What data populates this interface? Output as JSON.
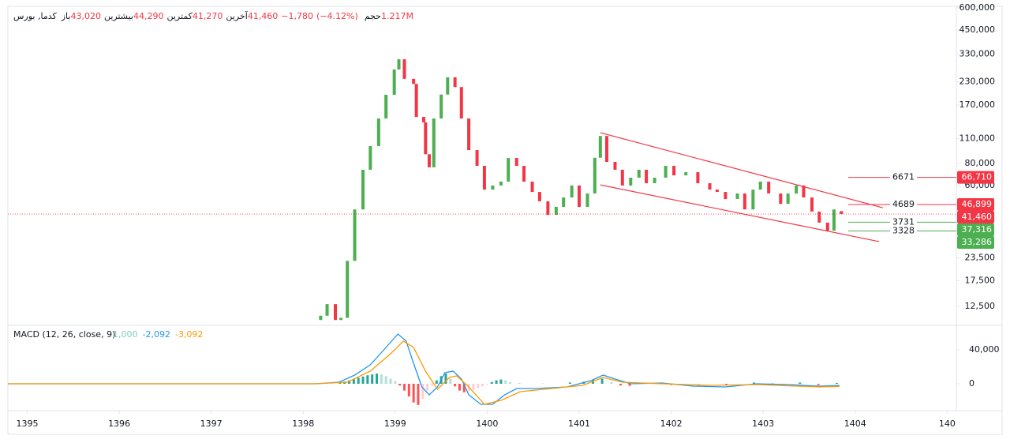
{
  "chart_data": [
    {
      "type": "candlestick",
      "header": {
        "symbol": "کدما, بورس",
        "items": [
          {
            "label": "باز",
            "value": "43,020"
          },
          {
            "label": "بیشترین",
            "value": "44,290"
          },
          {
            "label": "کمترین",
            "value": "41,270"
          },
          {
            "label": "آخرین",
            "value": "41,460"
          }
        ],
        "change": "−1,780",
        "change_pct": "(−4.12%)",
        "volume_label": "حجم",
        "volume": "1.217M"
      },
      "log_scale": true,
      "xlim": [
        1394.79,
        1405.1
      ],
      "ylim": [
        10000,
        612000
      ],
      "yticks": [
        {
          "value": 600000,
          "label": "600,000"
        },
        {
          "value": 450000,
          "label": "450,000"
        },
        {
          "value": 330000,
          "label": "330,000"
        },
        {
          "value": 230000,
          "label": "230,000"
        },
        {
          "value": 170000,
          "label": "170,000"
        },
        {
          "value": 110000,
          "label": "110,000"
        },
        {
          "value": 80000,
          "label": "80,000"
        },
        {
          "value": 60000,
          "label": "60,000"
        },
        {
          "value": 23500,
          "label": "23,500"
        },
        {
          "value": 17500,
          "label": "17,500"
        },
        {
          "value": 12500,
          "label": "12,500"
        }
      ],
      "up_color": "#4caf50",
      "down_color": "#f23645",
      "x": [
        1398.19,
        1398.26,
        1398.35,
        1398.41,
        1398.48,
        1398.56,
        1398.65,
        1398.73,
        1398.82,
        1398.9,
        1398.99,
        1399.04,
        1399.1,
        1399.2,
        1399.23,
        1399.31,
        1399.33,
        1399.37,
        1399.42,
        1399.5,
        1399.57,
        1399.65,
        1399.72,
        1399.8,
        1399.89,
        1399.97,
        1400.06,
        1400.15,
        1400.23,
        1400.32,
        1400.4,
        1400.49,
        1400.57,
        1400.66,
        1400.75,
        1400.83,
        1400.92,
        1401.0,
        1401.09,
        1401.17,
        1401.23,
        1401.3,
        1401.39,
        1401.47,
        1401.56,
        1401.65,
        1401.73,
        1401.82,
        1401.94,
        1402.03,
        1402.16,
        1402.29,
        1402.42,
        1402.5,
        1402.59,
        1402.72,
        1402.8,
        1402.89,
        1402.97,
        1403.06,
        1403.19,
        1403.27,
        1403.36,
        1403.44,
        1403.53,
        1403.61,
        1403.7,
        1403.77,
        1403.85
      ],
      "open": [
        10500,
        11100,
        12900,
        10500,
        10800,
        22600,
        44000,
        73600,
        100000,
        143000,
        194500,
        270000,
        308000,
        239000,
        224000,
        146000,
        136000,
        90000,
        76000,
        143000,
        195000,
        244000,
        215000,
        143000,
        95000,
        77400,
        56900,
        60000,
        63100,
        85700,
        77400,
        63100,
        55200,
        48900,
        41000,
        45500,
        51400,
        60000,
        45500,
        54100,
        86000,
        114000,
        81500,
        73600,
        60000,
        66400,
        73600,
        61800,
        66400,
        77400,
        68400,
        71300,
        61800,
        56900,
        55200,
        50400,
        54100,
        44000,
        56900,
        63100,
        54100,
        47300,
        54100,
        60000,
        51400,
        42800,
        37100,
        33400,
        43020
      ],
      "close": [
        11100,
        12900,
        10500,
        10800,
        22600,
        44000,
        73600,
        100000,
        143000,
        194500,
        270000,
        308000,
        239000,
        224000,
        146000,
        136000,
        90000,
        76000,
        143000,
        195000,
        244000,
        215000,
        143000,
        95000,
        77400,
        56900,
        60000,
        63100,
        85700,
        77400,
        63100,
        55200,
        48900,
        41000,
        45500,
        51400,
        60000,
        45500,
        54100,
        86000,
        114000,
        81500,
        73600,
        60000,
        66400,
        73600,
        61800,
        66400,
        77400,
        68400,
        71300,
        61800,
        56900,
        55200,
        50400,
        54100,
        44000,
        56900,
        63100,
        54100,
        47300,
        54100,
        60000,
        51400,
        42800,
        37100,
        33400,
        44000,
        41460
      ],
      "last_price": {
        "value": 41460,
        "label": "41,460",
        "color": "#f23645"
      },
      "levels": [
        {
          "name": "6671",
          "value": 66710,
          "label": "66,710",
          "color": "#f23645"
        },
        {
          "name": "4689",
          "value": 46899,
          "label": "46,899",
          "color": "#f23645"
        },
        {
          "name": "3731",
          "value": 37316,
          "label": "37,316",
          "color": "#4caf50"
        },
        {
          "name": "3328",
          "value": 33286,
          "label": "33,286",
          "color": "#4caf50"
        }
      ],
      "trendlines": {
        "color": "#f23645",
        "lines": [
          {
            "x": [
              1401.23,
              1404.3
            ],
            "values": [
              119000,
              45000
            ]
          },
          {
            "x": [
              1401.23,
              1404.26
            ],
            "values": [
              60500,
              29000
            ]
          }
        ]
      }
    },
    {
      "type": "macd",
      "title": "MACD (12, 26, close, 9)",
      "legend_values": [
        {
          "label": "1,000",
          "color": "#80cbc4"
        },
        {
          "label": "-2,092",
          "color": "#2196f3"
        },
        {
          "label": "-3,092",
          "color": "#ff9800"
        }
      ],
      "xlim": [
        1394.79,
        1405.1
      ],
      "xticks": [
        1395,
        1396,
        1397,
        1398,
        1399,
        1400,
        1401,
        1402,
        1403,
        1404,
        {
          "value": 1405,
          "label": "140"
        }
      ],
      "ylim": [
        -31630,
        66980
      ],
      "yticks": [
        {
          "value": 40000,
          "label": "40,000"
        },
        0
      ],
      "histogram": {
        "colors": {
          "up_strong": "#26a69a",
          "up_weak": "#b2dfdb",
          "down_strong": "#ff5252",
          "down_weak": "#ffcdd2"
        },
        "x": [
          1398.4,
          1398.45,
          1398.5,
          1398.55,
          1398.6,
          1398.65,
          1398.7,
          1398.75,
          1398.8,
          1398.85,
          1398.9,
          1398.95,
          1399.0,
          1399.05,
          1399.1,
          1399.15,
          1399.2,
          1399.25,
          1399.3,
          1399.35,
          1399.4,
          1399.45,
          1399.5,
          1399.55,
          1399.6,
          1399.65,
          1399.7,
          1399.75,
          1399.8,
          1399.85,
          1399.9,
          1399.95,
          1400.0,
          1400.05,
          1400.1,
          1400.15,
          1400.2,
          1400.25,
          1400.35,
          1400.6,
          1400.9,
          1401.05,
          1401.15,
          1401.25,
          1401.35,
          1401.45,
          1401.55,
          1401.75,
          1402.0,
          1402.3,
          1402.6,
          1402.9,
          1403.1,
          1403.4,
          1403.6,
          1403.8
        ],
        "values": [
          1000,
          2500,
          4000,
          5500,
          7000,
          8500,
          10000,
          11000,
          12000,
          11000,
          9000,
          6000,
          3000,
          -2000,
          -8000,
          -15000,
          -22000,
          -25000,
          -18000,
          -8000,
          -2000,
          4000,
          9000,
          12000,
          6000,
          -3000,
          -8000,
          -10000,
          -9000,
          -7000,
          -5000,
          -3000,
          -1000,
          2000,
          4000,
          5000,
          4000,
          2000,
          1000,
          500,
          1500,
          2500,
          5000,
          6000,
          2000,
          -2000,
          -2500,
          1000,
          -1500,
          -1000,
          -1500,
          1500,
          1000,
          1500,
          -1500,
          1000
        ]
      },
      "series": [
        {
          "color": "#2196f3",
          "x": [
            1394.79,
            1398.13,
            1398.39,
            1398.56,
            1398.73,
            1398.9,
            1399.03,
            1399.12,
            1399.2,
            1399.29,
            1399.37,
            1399.46,
            1399.54,
            1399.63,
            1399.72,
            1399.8,
            1399.93,
            1400.06,
            1400.19,
            1400.32,
            1400.53,
            1400.87,
            1401.13,
            1401.26,
            1401.39,
            1401.56,
            1401.9,
            1402.24,
            1402.59,
            1402.93,
            1403.27,
            1403.61,
            1403.83
          ],
          "values": [
            0,
            0,
            1860,
            10230,
            22330,
            42790,
            58600,
            50230,
            24190,
            -3720,
            -13000,
            -3720,
            13020,
            14880,
            5580,
            -13000,
            -24190,
            -24190,
            -13000,
            -5580,
            -5580,
            -3720,
            3720,
            10230,
            5580,
            0,
            930,
            -2790,
            -3720,
            0,
            -930,
            -2790,
            -2092
          ]
        },
        {
          "color": "#ff9800",
          "x": [
            1394.79,
            1398.13,
            1398.48,
            1398.73,
            1398.95,
            1399.09,
            1399.2,
            1399.33,
            1399.46,
            1399.59,
            1399.67,
            1399.8,
            1399.97,
            1400.15,
            1400.36,
            1400.7,
            1401.04,
            1401.26,
            1401.47,
            1401.9,
            1402.42,
            1402.93,
            1403.61,
            1403.83
          ],
          "values": [
            0,
            0,
            1860,
            14880,
            35350,
            50230,
            42790,
            14880,
            -6510,
            7440,
            9300,
            -3720,
            -24190,
            -19530,
            -9300,
            -5580,
            -1860,
            7440,
            1860,
            0,
            -1860,
            -930,
            -3720,
            -3092
          ]
        }
      ]
    }
  ]
}
